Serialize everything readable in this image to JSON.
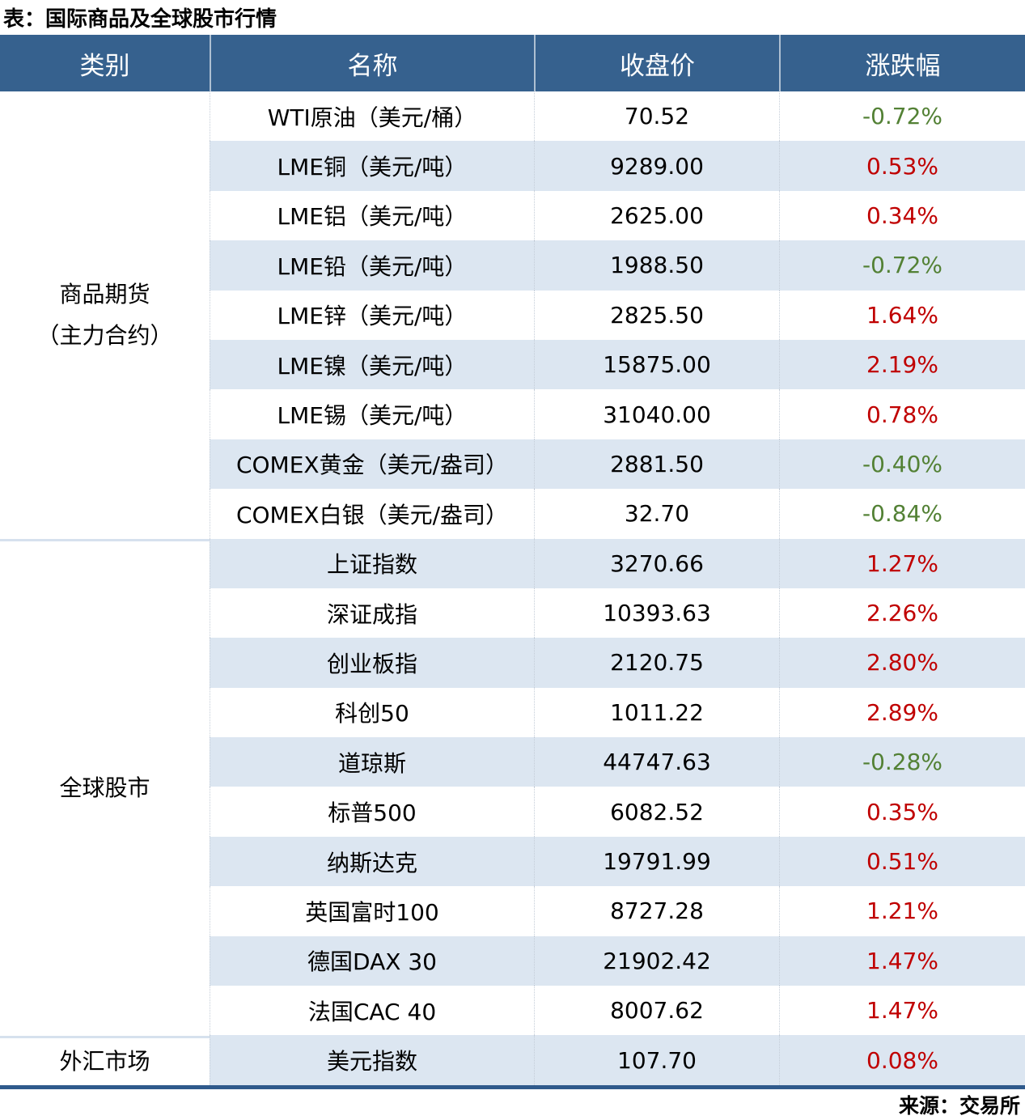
{
  "page": {
    "title": "表：国际商品及全球股市行情",
    "source": "来源：交易所"
  },
  "colors": {
    "header_bg": "#36618E",
    "stripe_bg": "#DCE6F1",
    "positive_red": "#C00000",
    "negative_green": "#538135",
    "section_separator": "#D6E1EE",
    "bottom_border": "#2F5A8C"
  },
  "chart_data": {
    "type": "table",
    "title": "表：国际商品及全球股市行情",
    "source": "来源：交易所",
    "columns": [
      "类别",
      "名称",
      "收盘价",
      "涨跌幅"
    ],
    "sections": [
      {
        "category_lines": [
          "商品期货",
          "（主力合约）"
        ],
        "rows": [
          {
            "name": "WTI原油（美元/桶）",
            "close": "70.52",
            "change": "-0.72%",
            "direction": "down"
          },
          {
            "name": "LME铜（美元/吨）",
            "close": "9289.00",
            "change": "0.53%",
            "direction": "up"
          },
          {
            "name": "LME铝（美元/吨）",
            "close": "2625.00",
            "change": "0.34%",
            "direction": "up"
          },
          {
            "name": "LME铅（美元/吨）",
            "close": "1988.50",
            "change": "-0.72%",
            "direction": "down"
          },
          {
            "name": "LME锌（美元/吨）",
            "close": "2825.50",
            "change": "1.64%",
            "direction": "up"
          },
          {
            "name": "LME镍（美元/吨）",
            "close": "15875.00",
            "change": "2.19%",
            "direction": "up"
          },
          {
            "name": "LME锡（美元/吨）",
            "close": "31040.00",
            "change": "0.78%",
            "direction": "up"
          },
          {
            "name": "COMEX黄金（美元/盎司）",
            "close": "2881.50",
            "change": "-0.40%",
            "direction": "down"
          },
          {
            "name": "COMEX白银（美元/盎司）",
            "close": "32.70",
            "change": "-0.84%",
            "direction": "down"
          }
        ]
      },
      {
        "category_lines": [
          "全球股市"
        ],
        "rows": [
          {
            "name": "上证指数",
            "close": "3270.66",
            "change": "1.27%",
            "direction": "up"
          },
          {
            "name": "深证成指",
            "close": "10393.63",
            "change": "2.26%",
            "direction": "up"
          },
          {
            "name": "创业板指",
            "close": "2120.75",
            "change": "2.80%",
            "direction": "up"
          },
          {
            "name": "科创50",
            "close": "1011.22",
            "change": "2.89%",
            "direction": "up"
          },
          {
            "name": "道琼斯",
            "close": "44747.63",
            "change": "-0.28%",
            "direction": "down"
          },
          {
            "name": "标普500",
            "close": "6082.52",
            "change": "0.35%",
            "direction": "up"
          },
          {
            "name": "纳斯达克",
            "close": "19791.99",
            "change": "0.51%",
            "direction": "up"
          },
          {
            "name": "英国富时100",
            "close": "8727.28",
            "change": "1.21%",
            "direction": "up"
          },
          {
            "name": "德国DAX 30",
            "close": "21902.42",
            "change": "1.47%",
            "direction": "up"
          },
          {
            "name": "法国CAC 40",
            "close": "8007.62",
            "change": "1.47%",
            "direction": "up"
          }
        ]
      },
      {
        "category_lines": [
          "外汇市场"
        ],
        "rows": [
          {
            "name": "美元指数",
            "close": "107.70",
            "change": "0.08%",
            "direction": "up"
          }
        ]
      }
    ]
  }
}
